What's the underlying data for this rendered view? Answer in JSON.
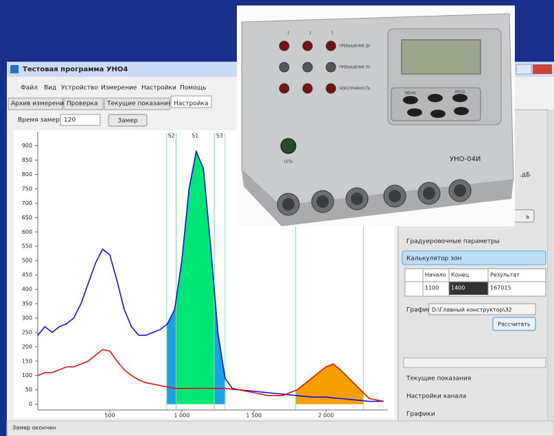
{
  "window": {
    "title": "Тестовая программа УНО4",
    "menu": [
      "Файл",
      "Вид",
      "Устройство",
      "Измерение",
      "Настройки",
      "Помощь"
    ],
    "tabs": [
      "Архив измерений",
      "Проверка",
      "Текущие показания",
      "Настройка"
    ]
  },
  "controls": {
    "time_label": "Время замера",
    "time_value": "120",
    "measure_button": "Замер"
  },
  "chart_data": {
    "type": "line",
    "x": [
      0,
      50,
      100,
      150,
      200,
      250,
      300,
      350,
      400,
      450,
      500,
      550,
      600,
      650,
      700,
      750,
      800,
      850,
      900,
      950,
      1000,
      1050,
      1100,
      1150,
      1200,
      1250,
      1300,
      1350,
      1400,
      1500,
      1600,
      1700,
      1800,
      1900,
      2000,
      2050,
      2100,
      2200,
      2300,
      2400
    ],
    "series": [
      {
        "color": "#1010e0",
        "values": [
          240,
          270,
          250,
          270,
          280,
          300,
          350,
          420,
          490,
          540,
          520,
          430,
          330,
          270,
          240,
          240,
          250,
          260,
          280,
          330,
          500,
          750,
          880,
          820,
          550,
          250,
          90,
          55,
          50,
          45,
          40,
          35,
          30,
          25,
          25,
          22,
          20,
          15,
          10,
          10
        ],
        "zones": [
          {
            "label": "S2",
            "start": 895,
            "end": 960,
            "color": "#1ea0e6"
          },
          {
            "label": "S1",
            "start": 960,
            "end": 1225,
            "color": "#00e676"
          },
          {
            "label": "S3",
            "start": 1225,
            "end": 1300,
            "color": "#1ea0e6"
          }
        ]
      },
      {
        "color": "#e01010",
        "values": [
          100,
          110,
          110,
          120,
          130,
          130,
          140,
          150,
          170,
          190,
          185,
          150,
          120,
          100,
          85,
          75,
          70,
          65,
          60,
          55,
          55,
          55,
          55,
          55,
          55,
          55,
          55,
          52,
          50,
          40,
          30,
          30,
          50,
          90,
          130,
          140,
          120,
          70,
          20,
          10
        ],
        "zones": [
          {
            "start": 1790,
            "end": 2260,
            "color": "#f5a000"
          }
        ]
      }
    ],
    "xlim": [
      0,
      2430
    ],
    "ylim": [
      -20,
      930
    ],
    "xticks": [
      500,
      {
        "value": 1000,
        "label": "1 000"
      },
      {
        "value": 1500,
        "label": "1 500"
      },
      {
        "value": 2000,
        "label": "2 000"
      }
    ],
    "yticks": [
      0,
      50,
      100,
      150,
      200,
      250,
      300,
      350,
      400,
      450,
      500,
      550,
      600,
      650,
      700,
      750,
      800,
      850,
      900
    ]
  },
  "panel": {
    "unit_fragment": ".дБ",
    "button_fragment": "ь",
    "calibration": "Градуировочные параметры",
    "calculator": "Калькулятор зон",
    "table": {
      "headers": [
        "Начало",
        "Конец",
        "Результат"
      ],
      "rows": [
        [
          1100,
          1400,
          167015
        ]
      ]
    },
    "graph_label": "График",
    "graph_path": "D:\\Главный конструктор\\32",
    "calc_button": "Рассчитать",
    "sections": [
      "Текущие показания",
      "Настройки канала",
      "Графики"
    ]
  },
  "status": "Замер окончен",
  "device": {
    "channels": [
      "1",
      "2",
      "3"
    ],
    "indicators": [
      "ПРЕВЫШЕНИЕ ДУ",
      "ПРЕВЫШЕНИЕ ПУ",
      "НЕИСПРАВНОСТЬ"
    ],
    "keys": [
      "МЕНЮ",
      "ВВОД"
    ],
    "power": "СЕТЬ",
    "model": "УНО-04И"
  }
}
